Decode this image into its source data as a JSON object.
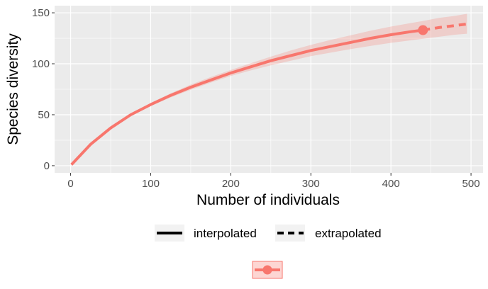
{
  "chart_data": {
    "type": "line",
    "xlabel": "Number of individuals",
    "ylabel": "Species diversity",
    "xlim": [
      -20,
      515
    ],
    "ylim": [
      -7,
      157
    ],
    "x_ticks": [
      0,
      100,
      200,
      300,
      400,
      500
    ],
    "y_ticks": [
      0,
      50,
      100,
      150
    ],
    "grid": true,
    "legend_position": "bottom",
    "series": [
      {
        "method": "interpolated",
        "line_style": "solid",
        "x": [
          1,
          25,
          50,
          75,
          100,
          125,
          150,
          175,
          200,
          225,
          250,
          275,
          300,
          325,
          350,
          375,
          400,
          425,
          440
        ],
        "y": [
          1,
          21,
          37,
          50,
          60,
          69,
          77,
          84,
          91,
          97,
          103,
          108,
          113,
          117,
          121,
          125,
          128.5,
          131.5,
          133
        ],
        "lower": [
          1,
          20,
          36,
          49,
          58.5,
          67,
          74.5,
          81.5,
          88,
          93.5,
          98.5,
          103,
          107.5,
          111,
          114.5,
          117.5,
          120.5,
          123,
          124.5
        ],
        "upper": [
          1,
          22,
          38,
          51,
          61.5,
          71,
          79.5,
          87,
          94,
          100.5,
          107,
          113,
          118.5,
          123.5,
          128,
          132.5,
          136.5,
          140,
          142
        ]
      },
      {
        "method": "extrapolated",
        "line_style": "dashed",
        "x": [
          440,
          460,
          480,
          495
        ],
        "y": [
          133,
          135.5,
          137.5,
          139
        ],
        "lower": [
          124.5,
          126.5,
          128.5,
          129.5
        ],
        "upper": [
          142,
          145,
          147,
          149
        ]
      }
    ],
    "observed_point": {
      "x": 440,
      "y": 133
    },
    "legend": {
      "line_types": [
        "interpolated",
        "extrapolated"
      ]
    }
  },
  "colors": {
    "series": "#F8766D",
    "ribbon": "#F8766D",
    "panel_bg": "#EBEBEB",
    "grid": "#FFFFFF",
    "legend_key_bg": "#F2F2F2"
  }
}
